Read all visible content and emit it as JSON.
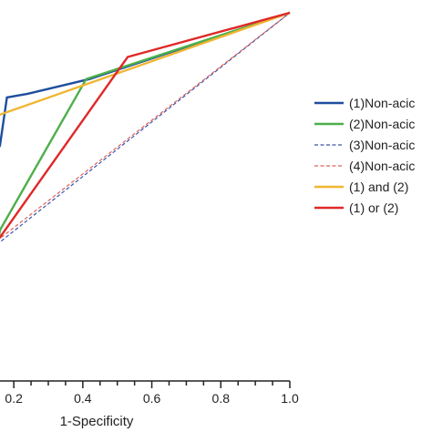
{
  "chart_data": {
    "type": "line",
    "xlabel": "1-Specificity",
    "x_ticks": [
      "0.2",
      "0.4",
      "0.6",
      "0.8",
      "1.0"
    ],
    "x_tick_values": [
      0.2,
      0.4,
      0.6,
      0.8,
      1.0
    ],
    "xlim": [
      0.16,
      1.0
    ],
    "ylim": [
      0.0,
      1.0
    ],
    "legend_position": "right",
    "series": [
      {
        "name": "(1)Non-acic",
        "color": "#1f4e9e",
        "dash": "solid",
        "points": [
          [
            0.15,
            0.62
          ],
          [
            0.16,
            0.64
          ],
          [
            0.18,
            0.77
          ],
          [
            0.24,
            0.78
          ],
          [
            0.42,
            0.82
          ],
          [
            1.0,
            1.0
          ]
        ]
      },
      {
        "name": "(2)Non-acic",
        "color": "#4daf4a",
        "dash": "solid",
        "points": [
          [
            0.15,
            0.35
          ],
          [
            0.16,
            0.41
          ],
          [
            0.41,
            0.82
          ],
          [
            1.0,
            1.0
          ]
        ]
      },
      {
        "name": "(3)Non-acic",
        "color": "#3a55a8",
        "dash": "dashed",
        "points": [
          [
            0.15,
            0.37
          ],
          [
            1.0,
            1.0
          ]
        ]
      },
      {
        "name": "(4)Non-acic",
        "color": "#e0605a",
        "dash": "dashed",
        "points": [
          [
            0.15,
            0.38
          ],
          [
            1.0,
            1.0
          ]
        ]
      },
      {
        "name": "(1) and (2)",
        "color": "#f0b633",
        "dash": "solid",
        "points": [
          [
            0.15,
            0.72
          ],
          [
            1.0,
            1.0
          ]
        ]
      },
      {
        "name": "(1) or (2)",
        "color": "#e02828",
        "dash": "solid",
        "points": [
          [
            0.15,
            0.38
          ],
          [
            0.16,
            0.39
          ],
          [
            0.53,
            0.88
          ],
          [
            1.0,
            1.0
          ]
        ]
      }
    ]
  }
}
